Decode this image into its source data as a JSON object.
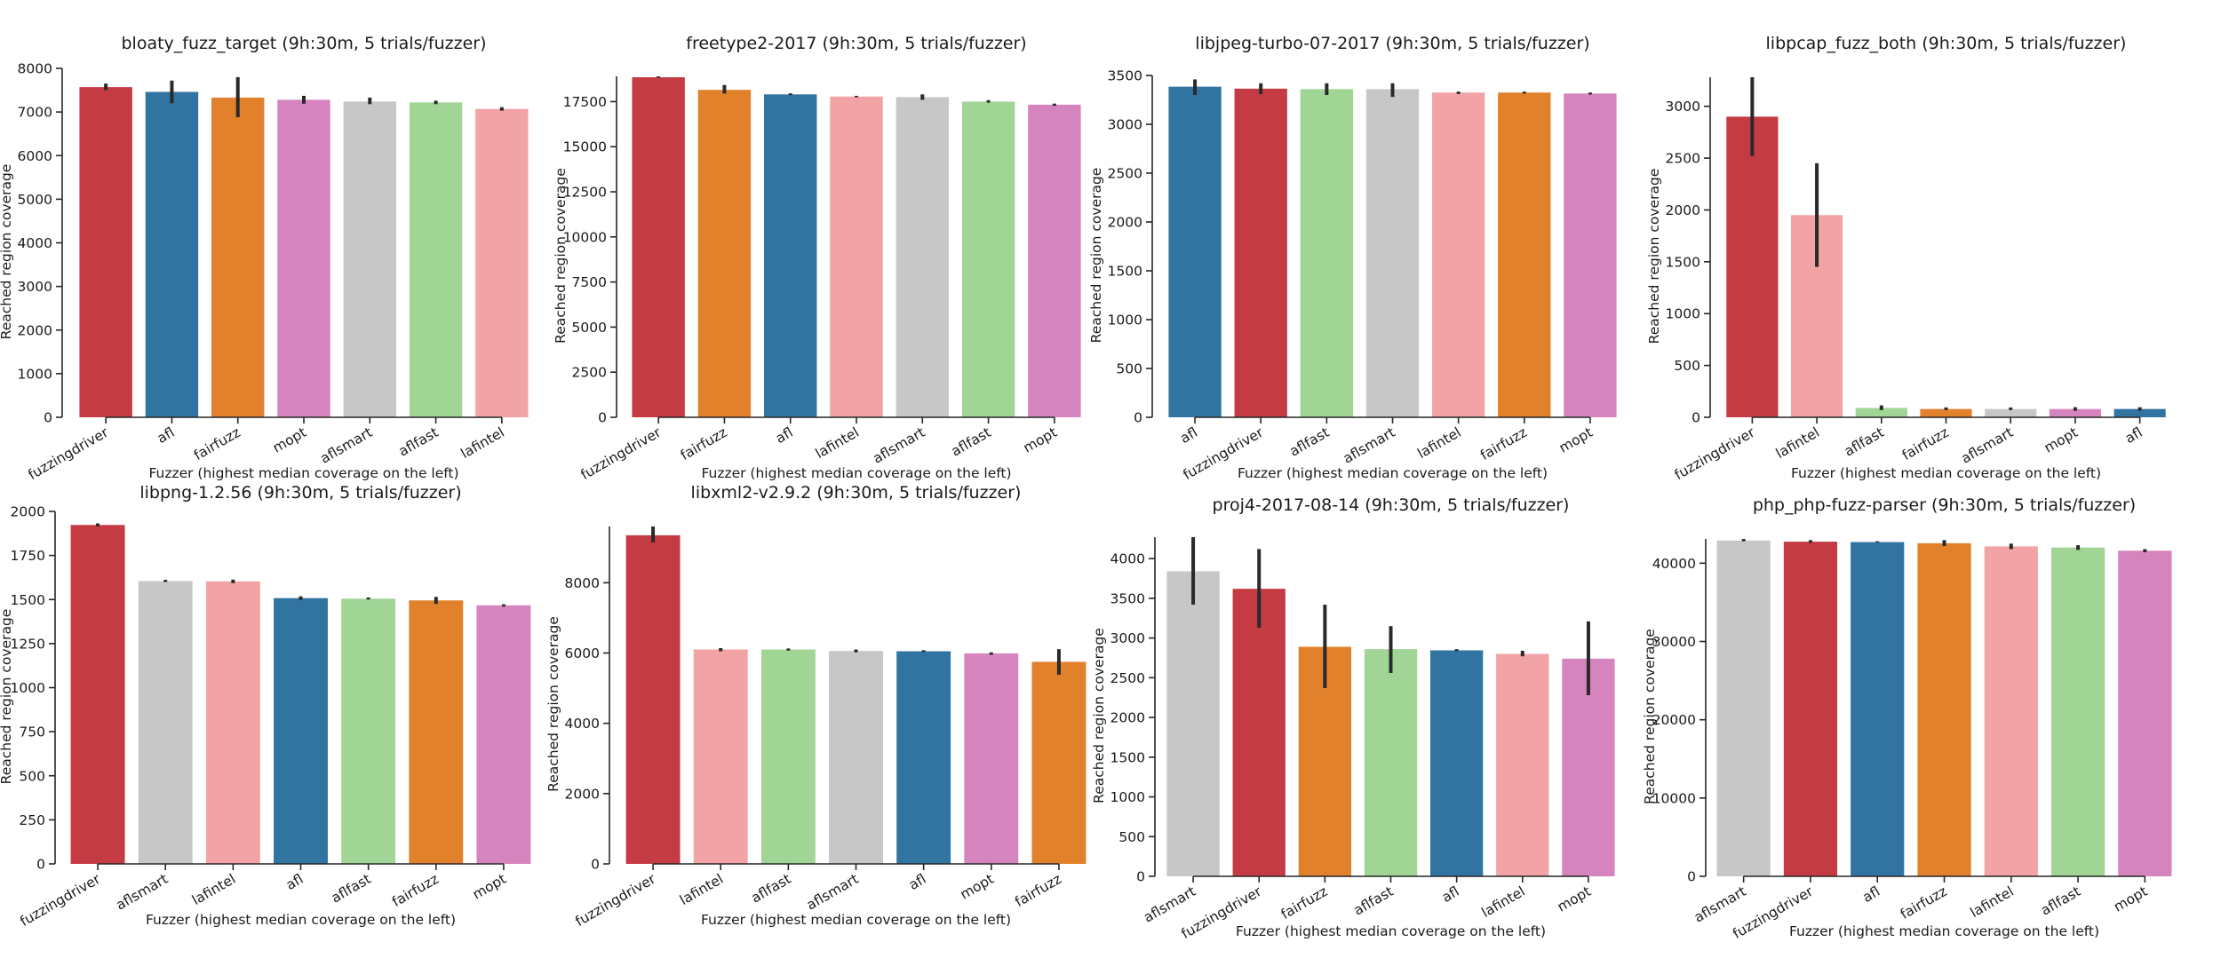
{
  "figure": {
    "xlabel": "Fuzzer (highest median coverage on the left)",
    "ylabel": "Reached region coverage"
  },
  "fuzzer_colors": {
    "fuzzingdriver": "#c53b44",
    "afl": "#3274a1",
    "fairfuzz": "#e1812c",
    "mopt": "#d684bd",
    "aflsmart": "#c7c7c7",
    "aflfast": "#a0d596",
    "lafintel": "#f2a3a5"
  },
  "chart_data": [
    {
      "type": "bar",
      "title": "bloaty_fuzz_target (9h:30m, 5 trials/fuzzer)",
      "xlabel": "Fuzzer (highest median coverage on the left)",
      "ylabel": "Reached region coverage",
      "categories": [
        "fuzzingdriver",
        "afl",
        "fairfuzz",
        "mopt",
        "aflsmart",
        "aflfast",
        "lafintel"
      ],
      "values": [
        7570,
        7460,
        7330,
        7280,
        7240,
        7220,
        7070
      ],
      "error_low": [
        7500,
        7200,
        6880,
        7190,
        7180,
        7180,
        7030
      ],
      "error_high": [
        7650,
        7720,
        7800,
        7370,
        7330,
        7260,
        7110
      ],
      "yticks": [
        0,
        1000,
        2000,
        3000,
        4000,
        5000,
        6000,
        7000,
        8000
      ],
      "ylim": [
        0,
        8000
      ],
      "grid": false
    },
    {
      "type": "bar",
      "title": "freetype2-2017 (9h:30m, 5 trials/fuzzer)",
      "xlabel": "Fuzzer (highest median coverage on the left)",
      "ylabel": "Reached region coverage",
      "categories": [
        "fuzzingdriver",
        "fairfuzz",
        "afl",
        "lafintel",
        "aflsmart",
        "aflfast",
        "mopt"
      ],
      "values": [
        18850,
        18150,
        17900,
        17780,
        17750,
        17500,
        17330
      ],
      "error_low": [
        18820,
        17950,
        17860,
        17740,
        17600,
        17440,
        17270
      ],
      "error_high": [
        18900,
        18420,
        17960,
        17820,
        17900,
        17580,
        17390
      ],
      "yticks": [
        0,
        2500,
        5000,
        7500,
        10000,
        12500,
        15000,
        17500
      ],
      "ylim": [
        0,
        18900
      ],
      "grid": false
    },
    {
      "type": "bar",
      "title": "libjpeg-turbo-07-2017 (9h:30m, 5 trials/fuzzer)",
      "xlabel": "Fuzzer (highest median coverage on the left)",
      "ylabel": "Reached region coverage",
      "categories": [
        "afl",
        "fuzzingdriver",
        "aflfast",
        "aflsmart",
        "lafintel",
        "fairfuzz",
        "mopt"
      ],
      "values": [
        3385,
        3365,
        3360,
        3360,
        3325,
        3325,
        3315
      ],
      "error_low": [
        3300,
        3310,
        3300,
        3280,
        3310,
        3315,
        3305
      ],
      "error_high": [
        3460,
        3420,
        3420,
        3420,
        3335,
        3335,
        3325
      ],
      "yticks": [
        0,
        500,
        1000,
        1500,
        2000,
        2500,
        3000,
        3500
      ],
      "ylim": [
        0,
        3500
      ],
      "grid": false
    },
    {
      "type": "bar",
      "title": "libpcap_fuzz_both (9h:30m, 5 trials/fuzzer)",
      "xlabel": "Fuzzer (highest median coverage on the left)",
      "ylabel": "Reached region coverage",
      "categories": [
        "fuzzingdriver",
        "lafintel",
        "aflfast",
        "fairfuzz",
        "aflsmart",
        "mopt",
        "afl"
      ],
      "values": [
        2900,
        1950,
        90,
        80,
        80,
        80,
        80
      ],
      "error_low": [
        2520,
        1450,
        70,
        70,
        70,
        80,
        80
      ],
      "error_high": [
        3280,
        2450,
        115,
        95,
        95,
        80,
        80
      ],
      "yticks": [
        0,
        500,
        1000,
        1500,
        2000,
        2500,
        3000
      ],
      "ylim": [
        0,
        3280
      ],
      "grid": false
    },
    {
      "type": "bar",
      "title": "libpng-1.2.56 (9h:30m, 5 trials/fuzzer)",
      "xlabel": "Fuzzer (highest median coverage on the left)",
      "ylabel": "Reached region coverage",
      "categories": [
        "fuzzingdriver",
        "aflsmart",
        "lafintel",
        "afl",
        "aflfast",
        "fairfuzz",
        "mopt"
      ],
      "values": [
        1923,
        1605,
        1603,
        1508,
        1505,
        1495,
        1467
      ],
      "error_low": [
        1915,
        1600,
        1603,
        1508,
        1500,
        1475,
        1460
      ],
      "error_high": [
        1932,
        1612,
        1603,
        1508,
        1512,
        1515,
        1473
      ],
      "yticks": [
        0,
        250,
        500,
        750,
        1000,
        1250,
        1500,
        1750,
        2000
      ],
      "ylim": [
        0,
        2000
      ],
      "grid": false
    },
    {
      "type": "bar",
      "title": "libxml2-v2.9.2 (9h:30m, 5 trials/fuzzer)",
      "xlabel": "Fuzzer (highest median coverage on the left)",
      "ylabel": "Reached region coverage",
      "categories": [
        "fuzzingdriver",
        "lafintel",
        "aflfast",
        "aflsmart",
        "afl",
        "mopt",
        "fairfuzz"
      ],
      "values": [
        9350,
        6100,
        6100,
        6060,
        6050,
        5990,
        5750
      ],
      "error_low": [
        9150,
        6050,
        6070,
        6020,
        6030,
        5950,
        5380
      ],
      "error_high": [
        9600,
        6140,
        6130,
        6100,
        6080,
        6020,
        6110
      ],
      "yticks": [
        0,
        2000,
        4000,
        6000,
        8000
      ],
      "ylim": [
        0,
        9600
      ],
      "grid": false
    },
    {
      "type": "bar",
      "title": "proj4-2017-08-14 (9h:30m, 5 trials/fuzzer)",
      "xlabel": "Fuzzer (highest median coverage on the left)",
      "ylabel": "Reached region coverage",
      "categories": [
        "aflsmart",
        "fuzzingdriver",
        "fairfuzz",
        "aflfast",
        "afl",
        "lafintel",
        "mopt"
      ],
      "values": [
        3840,
        3620,
        2890,
        2860,
        2845,
        2800,
        2740
      ],
      "error_low": [
        3420,
        3130,
        2370,
        2560,
        2835,
        2770,
        2280
      ],
      "error_high": [
        4270,
        4120,
        3420,
        3150,
        2860,
        2840,
        3210
      ],
      "yticks": [
        0,
        500,
        1000,
        1500,
        2000,
        2500,
        3000,
        3500,
        4000
      ],
      "ylim": [
        0,
        4270
      ],
      "grid": false
    },
    {
      "type": "bar",
      "title": "php_php-fuzz-parser (9h:30m, 5 trials/fuzzer)",
      "xlabel": "Fuzzer (highest median coverage on the left)",
      "ylabel": "Reached region coverage",
      "categories": [
        "aflsmart",
        "fuzzingdriver",
        "afl",
        "fairfuzz",
        "lafintel",
        "aflfast",
        "mopt"
      ],
      "values": [
        42900,
        42750,
        42700,
        42550,
        42150,
        42000,
        41600
      ],
      "error_low": [
        42800,
        42600,
        42650,
        42200,
        41800,
        41700,
        41400
      ],
      "error_high": [
        43100,
        42950,
        42800,
        42950,
        42500,
        42300,
        41800
      ],
      "yticks": [
        0,
        10000,
        20000,
        30000,
        40000
      ],
      "ylim": [
        0,
        43100
      ],
      "grid": false
    }
  ]
}
